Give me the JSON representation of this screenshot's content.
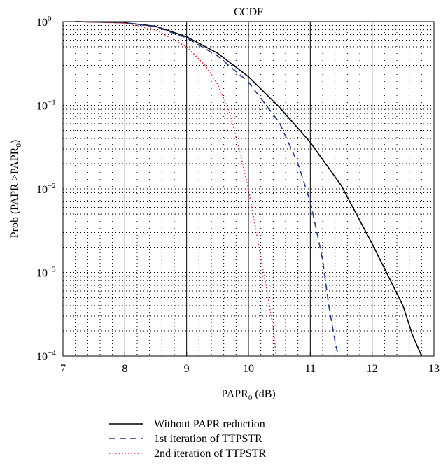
{
  "chart_data": {
    "type": "line",
    "title": "CCDF",
    "xlabel": "PAPR",
    "xlabel_sub": "0",
    "xlabel_unit": " (dB)",
    "ylabel_prefix": "Prob (PAPR >PAPR",
    "ylabel_sub": "0",
    "ylabel_suffix": ")",
    "xlim": [
      7,
      13
    ],
    "ylim": [
      0.0001,
      1
    ],
    "yscale": "log",
    "grid": true,
    "xticks": [
      "7",
      "8",
      "9",
      "10",
      "11",
      "12",
      "13"
    ],
    "yticks": [
      {
        "base": "10",
        "exp": "0"
      },
      {
        "base": "10",
        "exp": "−1"
      },
      {
        "base": "10",
        "exp": "−2"
      },
      {
        "base": "10",
        "exp": "−3"
      },
      {
        "base": "10",
        "exp": "−4"
      }
    ],
    "legend_position": "below",
    "series": [
      {
        "name": "Without PAPR reduction",
        "color": "#000000",
        "style": "solid",
        "points": [
          [
            7.2,
            1.0
          ],
          [
            8.0,
            0.97
          ],
          [
            8.5,
            0.88
          ],
          [
            9.0,
            0.66
          ],
          [
            9.5,
            0.42
          ],
          [
            10.0,
            0.22
          ],
          [
            10.5,
            0.095
          ],
          [
            11.0,
            0.036
          ],
          [
            11.5,
            0.011
          ],
          [
            12.0,
            0.0022
          ],
          [
            12.5,
            0.0004
          ],
          [
            12.65,
            0.00018
          ],
          [
            12.8,
            0.0001
          ]
        ]
      },
      {
        "name": "1st iteration of TTPSTR",
        "color": "#1f3b8f",
        "style": "dashed",
        "points": [
          [
            7.2,
            1.0
          ],
          [
            8.0,
            0.97
          ],
          [
            8.5,
            0.87
          ],
          [
            9.0,
            0.64
          ],
          [
            9.5,
            0.39
          ],
          [
            10.0,
            0.19
          ],
          [
            10.5,
            0.062
          ],
          [
            10.8,
            0.02
          ],
          [
            11.0,
            0.007
          ],
          [
            11.1,
            0.0032
          ],
          [
            11.2,
            0.0014
          ],
          [
            11.3,
            0.0004
          ],
          [
            11.4,
            0.00015
          ],
          [
            11.45,
            0.0001
          ]
        ]
      },
      {
        "name": "2nd iteration of TTPSTR",
        "color": "#e8262b",
        "style": "dotted",
        "points": [
          [
            7.2,
            1.0
          ],
          [
            8.0,
            0.96
          ],
          [
            8.5,
            0.8
          ],
          [
            9.0,
            0.5
          ],
          [
            9.3,
            0.3
          ],
          [
            9.5,
            0.18
          ],
          [
            9.7,
            0.08
          ],
          [
            9.85,
            0.03
          ],
          [
            10.0,
            0.01
          ],
          [
            10.1,
            0.004
          ],
          [
            10.2,
            0.0015
          ],
          [
            10.3,
            0.0006
          ],
          [
            10.4,
            0.00022
          ],
          [
            10.45,
            0.0001
          ]
        ]
      }
    ]
  }
}
